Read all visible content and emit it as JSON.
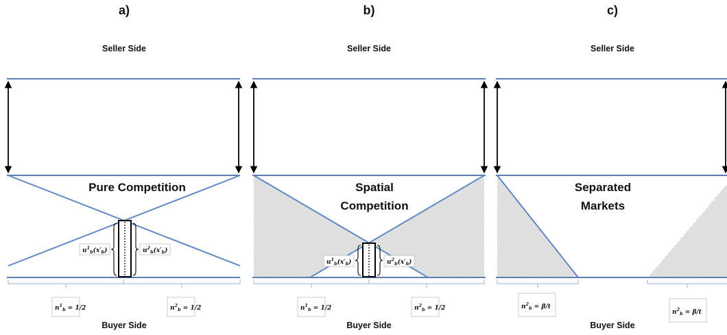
{
  "panels": [
    {
      "letter": "a)",
      "seller_side": "Seller Side",
      "buyer_side": "Buyer Side",
      "label_line1": "Pure Competition",
      "label_line2": "",
      "utility_left": "u",
      "utility_left_sup": "1",
      "utility_left_arg": "(x′",
      "utility_right": "u",
      "utility_right_sup": "2",
      "utility_right_arg": "(x′",
      "share_left": "n",
      "share_left_sup": "1",
      "share_left_value": "1/2",
      "share_right": "n",
      "share_right_sup": "2",
      "share_right_value": "1/2"
    },
    {
      "letter": "b)",
      "seller_side": "Seller Side",
      "buyer_side": "Buyer Side",
      "label_line1": "Spatial",
      "label_line2": "Competition",
      "utility_left": "u",
      "utility_left_sup": "1",
      "utility_left_arg": "(x′",
      "utility_right": "u",
      "utility_right_sup": "2",
      "utility_right_arg": "(x′",
      "share_left": "n",
      "share_left_sup": "1",
      "share_left_value": "1/2",
      "share_right": "n",
      "share_right_sup": "2",
      "share_right_value": "1/2"
    },
    {
      "letter": "c)",
      "seller_side": "Seller Side",
      "buyer_side": "Buyer Side",
      "label_line1": "Separated",
      "label_line2": "Markets",
      "share_left": "n",
      "share_left_sup": "2",
      "share_left_value": "β/t",
      "share_right": "n",
      "share_right_sup": "2",
      "share_right_value": "β/t"
    }
  ],
  "colors": {
    "line": "#5b7fb5",
    "shade": "#d9d9d9",
    "arrow": "#000000"
  }
}
